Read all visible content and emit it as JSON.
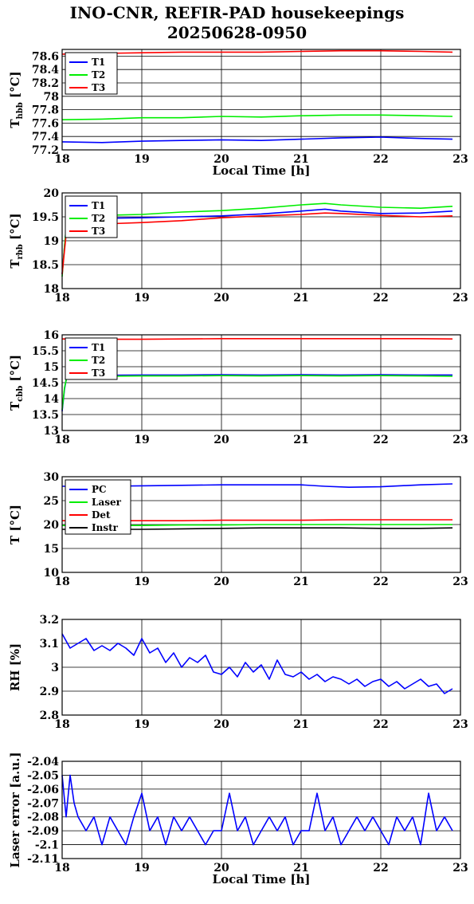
{
  "title_line1": "INO-CNR, REFIR-PAD housekeepings",
  "title_line2": "20250628-0950",
  "chart_data": [
    {
      "type": "line",
      "ylabel": "T",
      "ylabel_sub": "hbb",
      "ylabel_unit": "[°C]",
      "xlabel": "Local Time [h]",
      "xlim": [
        18,
        23
      ],
      "ylim": [
        77.2,
        78.7
      ],
      "yticks": [
        77.2,
        77.4,
        77.6,
        77.8,
        78,
        78.2,
        78.4,
        78.6
      ],
      "ytick_labels": [
        "77.2",
        "77.4",
        "77.6",
        "77.8",
        "78",
        "78.2",
        "78.4",
        "78.6"
      ],
      "xticks": [
        18,
        19,
        20,
        21,
        22,
        23
      ],
      "xtick_labels": [
        "18",
        "19",
        "20",
        "21",
        "22",
        "23"
      ],
      "legend": "top-left",
      "grid": true,
      "series": [
        {
          "name": "T1",
          "color": "#0000ff",
          "x": [
            18.0,
            18.5,
            19.0,
            19.5,
            20.0,
            20.5,
            21.0,
            21.5,
            22.0,
            22.5,
            22.9
          ],
          "y": [
            77.32,
            77.31,
            77.33,
            77.34,
            77.35,
            77.34,
            77.36,
            77.38,
            77.39,
            77.37,
            77.36
          ]
        },
        {
          "name": "T2",
          "color": "#00ee00",
          "x": [
            18.0,
            18.5,
            19.0,
            19.5,
            20.0,
            20.5,
            21.0,
            21.5,
            22.0,
            22.5,
            22.9
          ],
          "y": [
            77.65,
            77.66,
            77.68,
            77.68,
            77.7,
            77.69,
            77.71,
            77.72,
            77.72,
            77.71,
            77.7
          ]
        },
        {
          "name": "T3",
          "color": "#ff0000",
          "x": [
            18.0,
            18.5,
            19.0,
            19.5,
            20.0,
            20.5,
            21.0,
            21.5,
            22.0,
            22.5,
            22.9
          ],
          "y": [
            78.63,
            78.64,
            78.65,
            78.66,
            78.66,
            78.66,
            78.67,
            78.68,
            78.68,
            78.67,
            78.66
          ]
        }
      ]
    },
    {
      "type": "line",
      "ylabel": "T",
      "ylabel_sub": "rbb",
      "ylabel_unit": "[°C]",
      "xlabel": "",
      "xlim": [
        18,
        23
      ],
      "ylim": [
        18,
        20
      ],
      "yticks": [
        18,
        18.5,
        19,
        19.5,
        20
      ],
      "ytick_labels": [
        "18",
        "18.5",
        "19",
        "19.5",
        "20"
      ],
      "xticks": [
        18,
        19,
        20,
        21,
        22,
        23
      ],
      "xtick_labels": [
        "18",
        "19",
        "20",
        "21",
        "22",
        "23"
      ],
      "legend": "top-left",
      "grid": true,
      "series": [
        {
          "name": "T1",
          "color": "#0000ff",
          "x": [
            18.0,
            18.03,
            18.06,
            18.1,
            18.5,
            19.0,
            19.5,
            20.0,
            20.5,
            21.0,
            21.3,
            21.5,
            22.0,
            22.5,
            22.9
          ],
          "y": [
            18.3,
            18.9,
            19.4,
            19.45,
            19.47,
            19.48,
            19.5,
            19.52,
            19.56,
            19.62,
            19.66,
            19.62,
            19.57,
            19.58,
            19.62
          ]
        },
        {
          "name": "T2",
          "color": "#00ee00",
          "x": [
            18.0,
            18.03,
            18.06,
            18.1,
            18.5,
            19.0,
            19.5,
            20.0,
            20.5,
            21.0,
            21.3,
            21.5,
            22.0,
            22.5,
            22.9
          ],
          "y": [
            18.25,
            18.9,
            19.45,
            19.5,
            19.53,
            19.55,
            19.6,
            19.63,
            19.68,
            19.75,
            19.78,
            19.75,
            19.7,
            19.68,
            19.72
          ]
        },
        {
          "name": "T3",
          "color": "#ff0000",
          "x": [
            18.0,
            18.03,
            18.06,
            18.1,
            18.5,
            19.0,
            19.5,
            20.0,
            20.5,
            21.0,
            21.3,
            21.5,
            22.0,
            22.5,
            22.9
          ],
          "y": [
            18.3,
            18.8,
            19.3,
            19.32,
            19.35,
            19.38,
            19.42,
            19.48,
            19.52,
            19.55,
            19.58,
            19.57,
            19.53,
            19.5,
            19.52
          ]
        }
      ]
    },
    {
      "type": "line",
      "ylabel": "T",
      "ylabel_sub": "cbb",
      "ylabel_unit": "[°C]",
      "xlabel": "",
      "xlim": [
        18,
        23
      ],
      "ylim": [
        13,
        16
      ],
      "yticks": [
        13,
        13.5,
        14,
        14.5,
        15,
        15.5,
        16
      ],
      "ytick_labels": [
        "13",
        "13.5",
        "14",
        "14.5",
        "15",
        "15.5",
        "16"
      ],
      "xticks": [
        18,
        19,
        20,
        21,
        22,
        23
      ],
      "xtick_labels": [
        "18",
        "19",
        "20",
        "21",
        "22",
        "23"
      ],
      "legend": "top-left",
      "grid": true,
      "series": [
        {
          "name": "T1",
          "color": "#0000ff",
          "x": [
            18.0,
            18.03,
            18.06,
            18.5,
            19.0,
            19.5,
            20.0,
            20.5,
            21.0,
            21.5,
            22.0,
            22.5,
            22.9
          ],
          "y": [
            13.6,
            14.3,
            14.72,
            14.73,
            14.74,
            14.74,
            14.75,
            14.74,
            14.75,
            14.74,
            14.75,
            14.74,
            14.74
          ]
        },
        {
          "name": "T2",
          "color": "#00ee00",
          "x": [
            18.0,
            18.03,
            18.06,
            18.5,
            19.0,
            19.5,
            20.0,
            20.5,
            21.0,
            21.5,
            22.0,
            22.5,
            22.9
          ],
          "y": [
            13.65,
            14.35,
            14.68,
            14.7,
            14.71,
            14.71,
            14.72,
            14.71,
            14.72,
            14.71,
            14.72,
            14.71,
            14.7
          ]
        },
        {
          "name": "T3",
          "color": "#ff0000",
          "x": [
            18.0,
            18.5,
            19.0,
            19.5,
            20.0,
            20.5,
            21.0,
            21.5,
            22.0,
            22.5,
            22.9
          ],
          "y": [
            15.87,
            15.86,
            15.86,
            15.87,
            15.88,
            15.88,
            15.88,
            15.88,
            15.88,
            15.88,
            15.87
          ]
        }
      ]
    },
    {
      "type": "line",
      "ylabel": "T [°C]",
      "ylabel_sub": "",
      "ylabel_unit": "",
      "xlabel": "",
      "xlim": [
        18,
        23
      ],
      "ylim": [
        10,
        30
      ],
      "yticks": [
        10,
        15,
        20,
        25,
        30
      ],
      "ytick_labels": [
        "10",
        "15",
        "20",
        "25",
        "30"
      ],
      "xticks": [
        18,
        19,
        20,
        21,
        22,
        23
      ],
      "xtick_labels": [
        "18",
        "19",
        "20",
        "21",
        "22",
        "23"
      ],
      "legend": "top-left",
      "grid": true,
      "series": [
        {
          "name": "PC",
          "color": "#0000ff",
          "x": [
            18.0,
            18.5,
            19.0,
            19.5,
            20.0,
            20.5,
            21.0,
            21.3,
            21.6,
            22.0,
            22.5,
            22.9
          ],
          "y": [
            28.0,
            28.0,
            28.1,
            28.2,
            28.3,
            28.3,
            28.3,
            28.0,
            27.8,
            27.9,
            28.3,
            28.5
          ]
        },
        {
          "name": "Laser",
          "color": "#00ee00",
          "x": [
            18.0,
            18.5,
            19.0,
            19.5,
            20.0,
            20.5,
            21.0,
            21.5,
            22.0,
            22.5,
            22.9
          ],
          "y": [
            19.8,
            19.8,
            19.8,
            19.9,
            19.9,
            20.0,
            20.0,
            20.0,
            20.0,
            20.0,
            20.0
          ]
        },
        {
          "name": "Det",
          "color": "#ff0000",
          "x": [
            18.0,
            18.5,
            19.0,
            19.5,
            20.0,
            20.5,
            21.0,
            21.5,
            22.0,
            22.5,
            22.9
          ],
          "y": [
            20.8,
            20.8,
            20.8,
            20.8,
            20.9,
            20.9,
            20.9,
            21.0,
            21.0,
            21.0,
            21.0
          ]
        },
        {
          "name": "Instr",
          "color": "#000000",
          "x": [
            18.0,
            18.5,
            19.0,
            19.5,
            20.0,
            20.5,
            21.0,
            21.5,
            22.0,
            22.5,
            22.9
          ],
          "y": [
            19.0,
            19.0,
            19.0,
            19.1,
            19.2,
            19.3,
            19.3,
            19.3,
            19.2,
            19.2,
            19.3
          ]
        }
      ]
    },
    {
      "type": "line",
      "ylabel": "RH [%]",
      "ylabel_sub": "",
      "ylabel_unit": "",
      "xlabel": "",
      "xlim": [
        18,
        23
      ],
      "ylim": [
        2.8,
        3.2
      ],
      "yticks": [
        2.8,
        2.9,
        3,
        3.1,
        3.2
      ],
      "ytick_labels": [
        "2.8",
        "2.9",
        "3",
        "3.1",
        "3.2"
      ],
      "xticks": [
        18,
        19,
        20,
        21,
        22,
        23
      ],
      "xtick_labels": [
        "18",
        "19",
        "20",
        "21",
        "22",
        "23"
      ],
      "legend": "none",
      "grid": true,
      "series": [
        {
          "color": "#0000ff",
          "x": [
            18.0,
            18.1,
            18.2,
            18.3,
            18.4,
            18.5,
            18.6,
            18.7,
            18.8,
            18.9,
            19.0,
            19.1,
            19.2,
            19.3,
            19.4,
            19.5,
            19.6,
            19.7,
            19.8,
            19.9,
            20.0,
            20.1,
            20.2,
            20.3,
            20.4,
            20.5,
            20.6,
            20.7,
            20.8,
            20.9,
            21.0,
            21.1,
            21.2,
            21.3,
            21.4,
            21.5,
            21.6,
            21.7,
            21.8,
            21.9,
            22.0,
            22.1,
            22.2,
            22.3,
            22.4,
            22.5,
            22.6,
            22.7,
            22.8,
            22.9
          ],
          "y": [
            3.14,
            3.08,
            3.1,
            3.12,
            3.07,
            3.09,
            3.07,
            3.1,
            3.08,
            3.05,
            3.12,
            3.06,
            3.08,
            3.02,
            3.06,
            3.0,
            3.04,
            3.02,
            3.05,
            2.98,
            2.97,
            3.0,
            2.96,
            3.02,
            2.98,
            3.01,
            2.95,
            3.03,
            2.97,
            2.96,
            2.98,
            2.95,
            2.97,
            2.94,
            2.96,
            2.95,
            2.93,
            2.95,
            2.92,
            2.94,
            2.95,
            2.92,
            2.94,
            2.91,
            2.93,
            2.95,
            2.92,
            2.93,
            2.89,
            2.91
          ]
        }
      ]
    },
    {
      "type": "line",
      "ylabel": "Laser error [a.u.]",
      "ylabel_sub": "",
      "ylabel_unit": "",
      "xlabel": "Local Time [h]",
      "xlim": [
        18,
        23
      ],
      "ylim": [
        -2.11,
        -2.04
      ],
      "yticks": [
        -2.11,
        -2.1,
        -2.09,
        -2.08,
        -2.07,
        -2.06,
        -2.05,
        -2.04
      ],
      "ytick_labels": [
        "-2.11",
        "-2.1",
        "-2.09",
        "-2.08",
        "-2.07",
        "-2.06",
        "-2.05",
        "-2.04"
      ],
      "xticks": [
        18,
        19,
        20,
        21,
        22,
        23
      ],
      "xtick_labels": [
        "18",
        "19",
        "20",
        "21",
        "22",
        "23"
      ],
      "legend": "none",
      "grid": true,
      "series": [
        {
          "color": "#0000ff",
          "x": [
            18.0,
            18.05,
            18.1,
            18.15,
            18.2,
            18.3,
            18.4,
            18.5,
            18.6,
            18.7,
            18.8,
            18.9,
            19.0,
            19.1,
            19.2,
            19.3,
            19.4,
            19.5,
            19.6,
            19.7,
            19.8,
            19.9,
            20.0,
            20.1,
            20.2,
            20.3,
            20.4,
            20.5,
            20.6,
            20.7,
            20.8,
            20.9,
            21.0,
            21.1,
            21.2,
            21.3,
            21.4,
            21.5,
            21.6,
            21.7,
            21.8,
            21.9,
            22.0,
            22.1,
            22.2,
            22.3,
            22.4,
            22.5,
            22.6,
            22.7,
            22.8,
            22.9
          ],
          "y": [
            -2.05,
            -2.08,
            -2.05,
            -2.07,
            -2.08,
            -2.09,
            -2.08,
            -2.1,
            -2.08,
            -2.09,
            -2.1,
            -2.08,
            -2.063,
            -2.09,
            -2.08,
            -2.1,
            -2.08,
            -2.09,
            -2.08,
            -2.09,
            -2.1,
            -2.09,
            -2.09,
            -2.063,
            -2.09,
            -2.08,
            -2.1,
            -2.09,
            -2.08,
            -2.09,
            -2.08,
            -2.1,
            -2.09,
            -2.09,
            -2.063,
            -2.09,
            -2.08,
            -2.1,
            -2.09,
            -2.08,
            -2.09,
            -2.08,
            -2.09,
            -2.1,
            -2.08,
            -2.09,
            -2.08,
            -2.1,
            -2.063,
            -2.09,
            -2.08,
            -2.09
          ]
        }
      ]
    }
  ]
}
